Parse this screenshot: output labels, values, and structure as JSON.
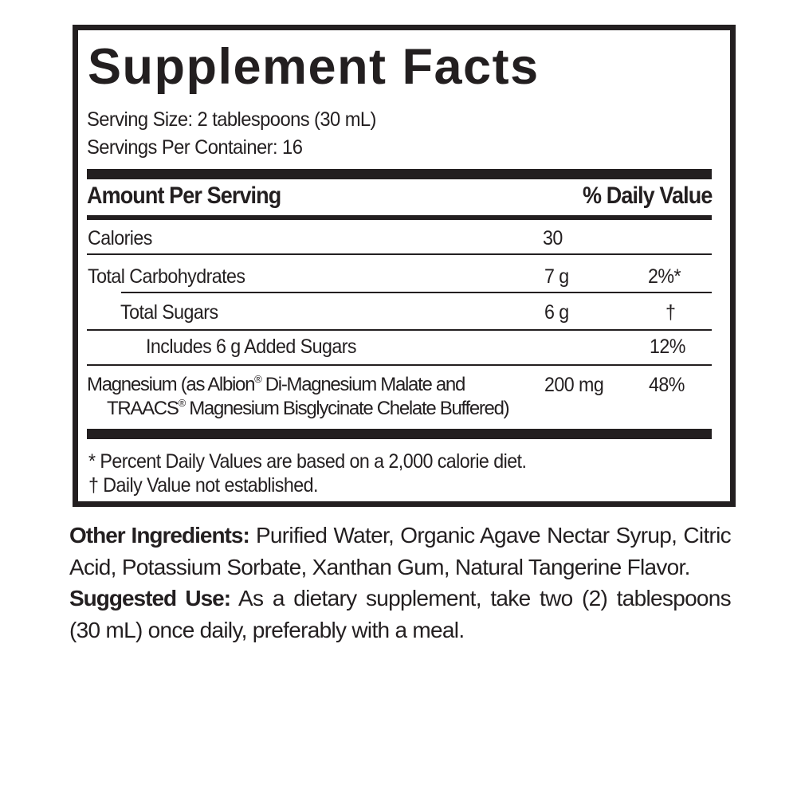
{
  "label": {
    "title": "Supplement Facts",
    "serving_size": "Serving Size: 2 tablespoons (30 mL)",
    "servings_per_container": "Servings Per Container: 16",
    "header": {
      "amount": "Amount Per Serving",
      "dv": "% Daily Value"
    },
    "rows": [
      {
        "name": "Calories",
        "amount": "30",
        "dv": ""
      },
      {
        "name": "Total Carbohydrates",
        "amount": "7 g",
        "dv": "2%*"
      },
      {
        "name": "Total Sugars",
        "amount": "6 g",
        "dv": "†"
      },
      {
        "name": "Includes 6 g Added Sugars",
        "amount": "",
        "dv": "12%"
      },
      {
        "name_line1_a": "Magnesium (as Albion",
        "reg": "®",
        "name_line1_b": " Di-Magnesium Malate and",
        "name_line2_a": "TRAACS",
        "name_line2_b": " Magnesium Bisglycinate Chelate Buffered)",
        "amount": "200 mg",
        "dv": "48%"
      }
    ],
    "footnotes": [
      "* Percent Daily Values are based on a 2,000 calorie diet.",
      "† Daily Value not established."
    ]
  },
  "other_ingredients": {
    "label": "Other Ingredients:",
    "text": " Purified Water, Organic Agave Nectar Syrup, Citric Acid, Potassium Sorbate, Xanthan Gum, Natural Tangerine Flavor."
  },
  "suggested_use": {
    "label": "Suggested Use:",
    "text": " As a dietary supplement, take two (2) tablespoons (30 mL) once daily, preferably with a meal."
  }
}
